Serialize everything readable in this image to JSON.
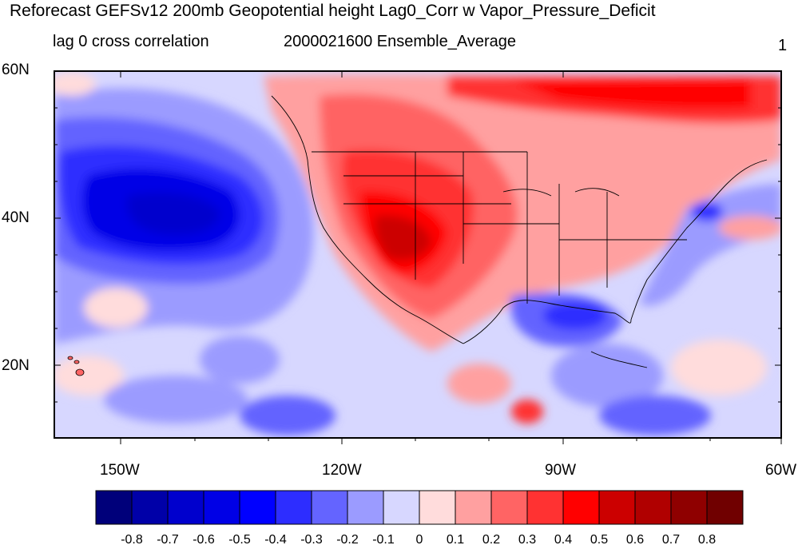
{
  "title": "Reforecast GEFSv12 200mb Geopotential height Lag0_Corr w Vapor_Pressure_Deficit",
  "subtitle_left": "lag 0 cross correlation",
  "subtitle_center": "2000021600 Ensemble_Average",
  "subtitle_right": "1",
  "lat_labels": [
    "60N",
    "40N",
    "20N"
  ],
  "lon_labels": [
    "150W",
    "120W",
    "90W",
    "60W"
  ],
  "colorbar": {
    "colors": [
      "#00007a",
      "#0000a8",
      "#0000cd",
      "#0000e6",
      "#0000ff",
      "#2d2dff",
      "#6464ff",
      "#9b9bff",
      "#d7d7ff",
      "#ffdcdc",
      "#ffa0a0",
      "#ff6464",
      "#ff3232",
      "#ff0000",
      "#cc0000",
      "#b00000",
      "#8f0000",
      "#700000"
    ],
    "tick_labels": [
      "-0.8",
      "-0.7",
      "-0.6",
      "-0.5",
      "-0.4",
      "-0.3",
      "-0.2",
      "-0.1",
      "0",
      "0.1",
      "0.2",
      "0.3",
      "0.4",
      "0.5",
      "0.6",
      "0.7",
      "0.8"
    ]
  },
  "map_extent": {
    "lon": [
      -160,
      -60
    ],
    "lat": [
      10,
      60
    ]
  }
}
